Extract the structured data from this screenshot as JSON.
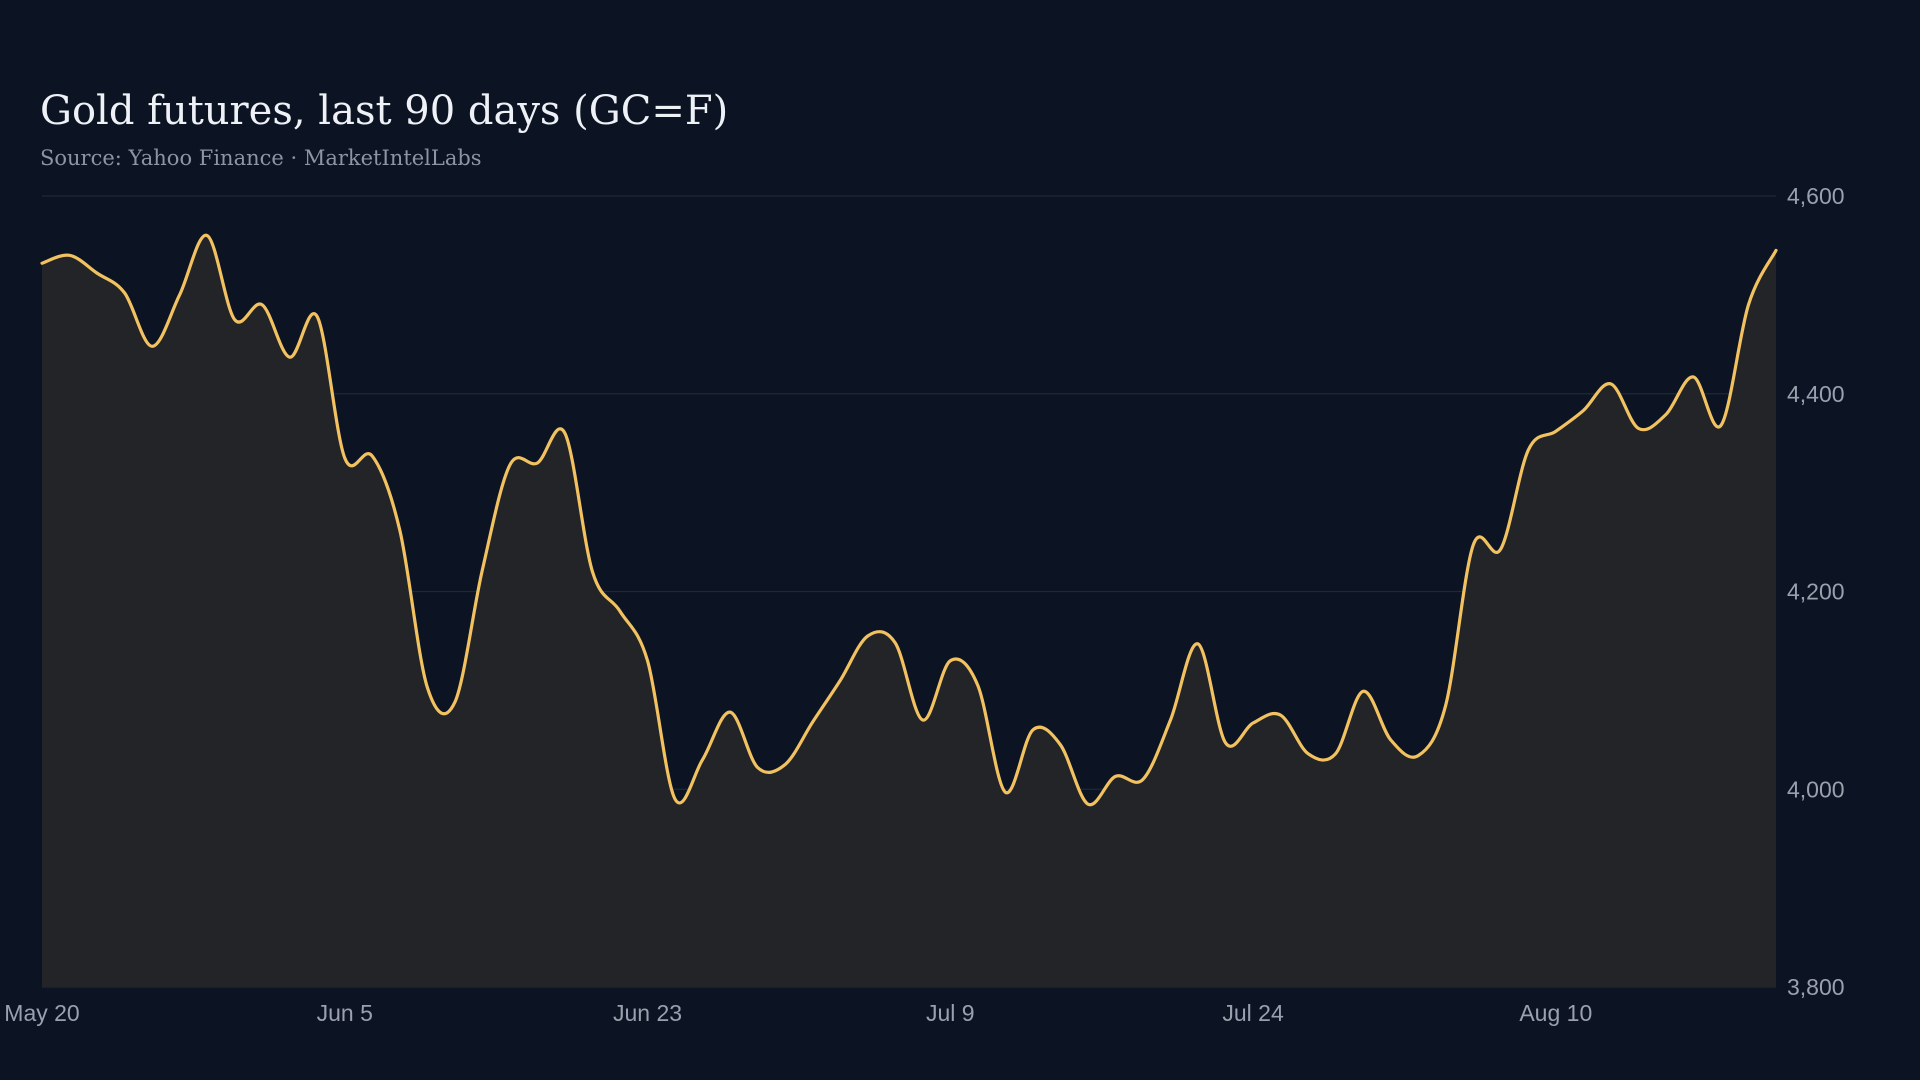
{
  "header": {
    "title": "Gold futures, last 90 days (GC=F)",
    "subtitle": "Source: Yahoo Finance · MarketIntelLabs"
  },
  "colors": {
    "background": "#0c1323",
    "line": "#f2c261",
    "area_fill": "#222428",
    "grid": "#1d2a36",
    "tick_text": "#9aa1ad"
  },
  "chart_data": {
    "type": "area",
    "title": "Gold futures, last 90 days (GC=F)",
    "subtitle": "Source: Yahoo Finance · MarketIntelLabs",
    "xlabel": "",
    "ylabel": "",
    "ylim": [
      3800,
      4600
    ],
    "yticks": [
      3800,
      4000,
      4200,
      4400,
      4600
    ],
    "ytick_labels": [
      "3,800",
      "4,000",
      "4,200",
      "4,400",
      "4,600"
    ],
    "yaxis_position": "right",
    "xticks": [
      {
        "index": 0,
        "label": "May 20"
      },
      {
        "index": 11,
        "label": "Jun  5"
      },
      {
        "index": 22,
        "label": "Jun 23"
      },
      {
        "index": 33,
        "label": "Jul  9"
      },
      {
        "index": 44,
        "label": "Jul 24"
      },
      {
        "index": 55,
        "label": "Aug 10"
      }
    ],
    "grid": true,
    "series": [
      {
        "values": [
          4532,
          4540,
          4522,
          4502,
          4448,
          4500,
          4560,
          4475,
          4490,
          4437,
          4478,
          4335,
          4337,
          4262,
          4103,
          4088,
          4222,
          4328,
          4330,
          4360,
          4220,
          4180,
          4130,
          3990,
          4030,
          4078,
          4022,
          4025,
          4068,
          4110,
          4155,
          4148,
          4070,
          4130,
          4105,
          3997,
          4060,
          4045,
          3985,
          4013,
          4010,
          4070,
          4147,
          4047,
          4067,
          4075,
          4036,
          4036,
          4099,
          4050,
          4034,
          4085,
          4247,
          4243,
          4343,
          4362,
          4383,
          4410,
          4365,
          4379,
          4417,
          4368,
          4490,
          4545
        ]
      }
    ]
  }
}
